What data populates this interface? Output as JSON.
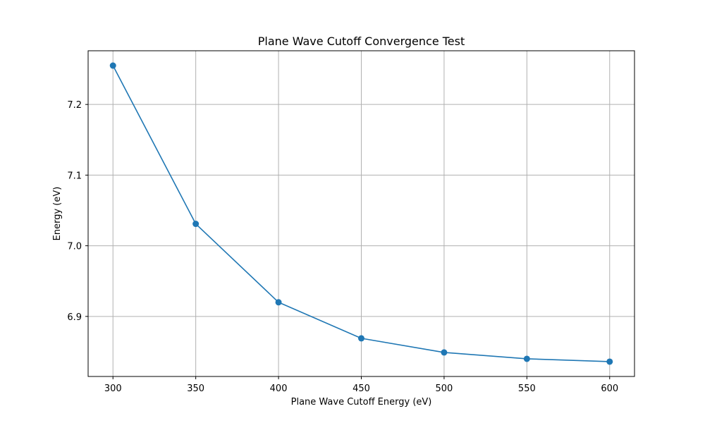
{
  "chart_data": {
    "type": "line",
    "title": "Plane Wave Cutoff Convergence Test",
    "xlabel": "Plane Wave Cutoff Energy (eV)",
    "ylabel": "Energy (eV)",
    "x": [
      300,
      350,
      400,
      450,
      500,
      550,
      600
    ],
    "series": [
      {
        "name": "Energy",
        "values": [
          7.255,
          7.031,
          6.92,
          6.869,
          6.849,
          6.84,
          6.836
        ],
        "color": "#1f77b4",
        "marker": "circle"
      }
    ],
    "xlim": [
      285,
      615
    ],
    "ylim": [
      6.815,
      7.276
    ],
    "xticks": [
      300,
      350,
      400,
      450,
      500,
      550,
      600
    ],
    "xtick_labels": [
      "300",
      "350",
      "400",
      "450",
      "500",
      "550",
      "600"
    ],
    "yticks": [
      6.9,
      7.0,
      7.1,
      7.2
    ],
    "ytick_labels": [
      "6.9",
      "7.0",
      "7.1",
      "7.2"
    ],
    "grid": true,
    "grid_color": "#b0b0b0",
    "axis_color": "#000000"
  }
}
